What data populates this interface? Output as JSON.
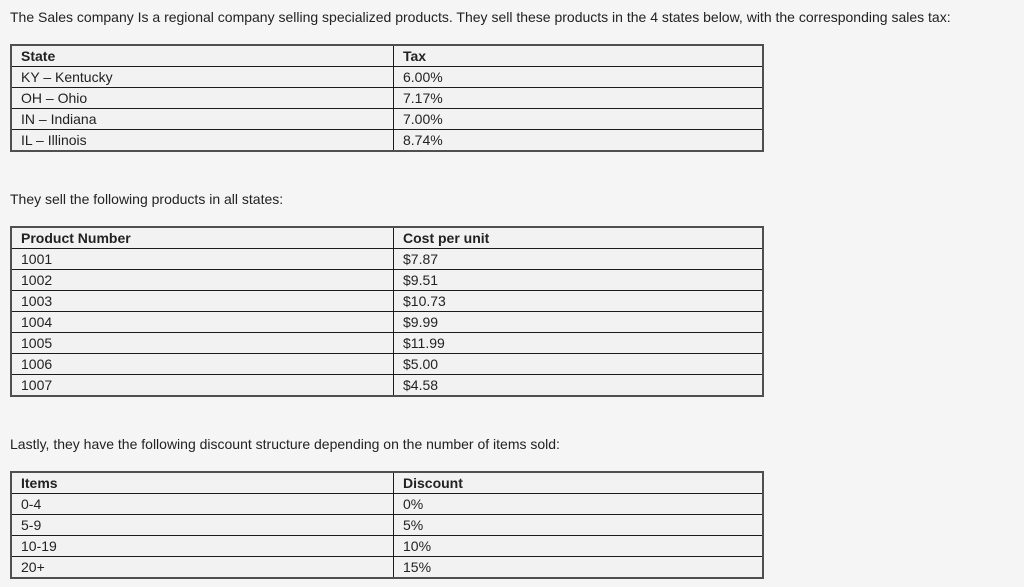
{
  "colors": {
    "page_bg": "#f5f5f5",
    "cell_bg": "#f2f2f2",
    "outer_border": "#4f4f4f",
    "inner_border": "#1c1c1c",
    "text": "#222222"
  },
  "intro_text": "The Sales company Is a regional company selling specialized products. They sell these products in the 4 states below, with the corresponding sales tax:",
  "state_tax_table": {
    "headers": [
      "State",
      "Tax"
    ],
    "rows": [
      [
        "KY – Kentucky",
        "6.00%"
      ],
      [
        "OH – Ohio",
        "7.17%"
      ],
      [
        "IN – Indiana",
        "7.00%"
      ],
      [
        "IL – Illinois",
        "8.74%"
      ]
    ]
  },
  "products_intro": "They sell the following products in all states:",
  "products_table": {
    "headers": [
      "Product Number",
      "Cost per unit"
    ],
    "rows": [
      [
        "1001",
        "$7.87"
      ],
      [
        "1002",
        "$9.51"
      ],
      [
        "1003",
        "$10.73"
      ],
      [
        "1004",
        "$9.99"
      ],
      [
        "1005",
        "$11.99"
      ],
      [
        "1006",
        "$5.00"
      ],
      [
        "1007",
        "$4.58"
      ]
    ]
  },
  "discounts_intro": "Lastly, they have the following discount structure depending on the number of items sold:",
  "discounts_table": {
    "headers": [
      "Items",
      "Discount"
    ],
    "rows": [
      [
        "0-4",
        "0%"
      ],
      [
        "5-9",
        "5%"
      ],
      [
        "10-19",
        "10%"
      ],
      [
        "20+",
        "15%"
      ]
    ]
  }
}
